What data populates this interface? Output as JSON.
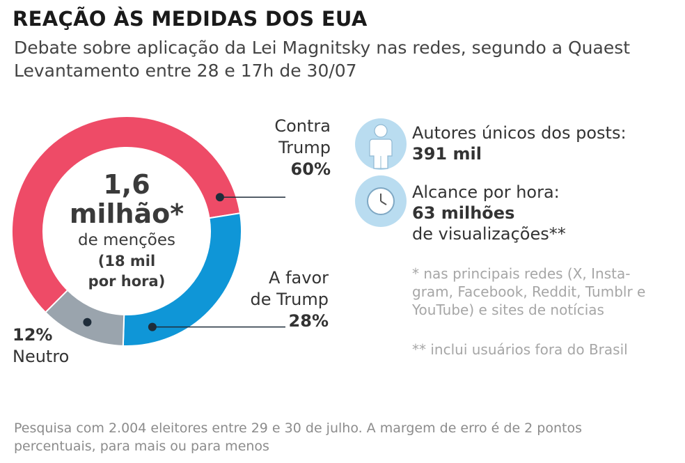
{
  "header": {
    "title": "REAÇÃO ÀS MEDIDAS DOS EUA",
    "subtitle_1": "Debate sobre aplicação da Lei Magnitsky nas redes, segundo a Quaest",
    "subtitle_2": "Levantamento entre 28 e 17h de 30/07"
  },
  "center": {
    "value_line1": "1,6",
    "value_line2": "milhão*",
    "label": "de menções",
    "rate_line1": "(18 mil",
    "rate_line2": "por hora)"
  },
  "chart_data": {
    "type": "pie",
    "donut": true,
    "slices": [
      {
        "name_lines": [
          "Contra",
          "Trump"
        ],
        "value": 60,
        "display": "60%",
        "color": "#ee4b67"
      },
      {
        "name_lines": [
          "A favor",
          "de Trump"
        ],
        "value": 28,
        "display": "28%",
        "color": "#0f96d7"
      },
      {
        "name_lines": [
          "Neutro"
        ],
        "value": 12,
        "display": "12%",
        "color": "#9aa4ad"
      }
    ]
  },
  "stats": {
    "authors_label": "Autores únicos dos posts:",
    "authors_value": "391 mil",
    "reach_label": "Alcance por hora:",
    "reach_value": "63 milhões",
    "reach_unit": "de visualizações**",
    "icon_color": "#b9dcf0",
    "icons": [
      "person-icon",
      "clock-icon"
    ]
  },
  "notes": {
    "note1_line1": "* nas principais redes (X, Insta-",
    "note1_line2": "gram, Facebook, Reddit, Tumblr e",
    "note1_line3": "YouTube) e sites de notícias",
    "note2": "** inclui usuários fora do Brasil"
  },
  "footer": {
    "line1": "Pesquisa com 2.004 eleitores entre 29 e 30 de julho. A margem de erro é de 2 pontos",
    "line2": "percentuais, para mais ou para menos"
  }
}
